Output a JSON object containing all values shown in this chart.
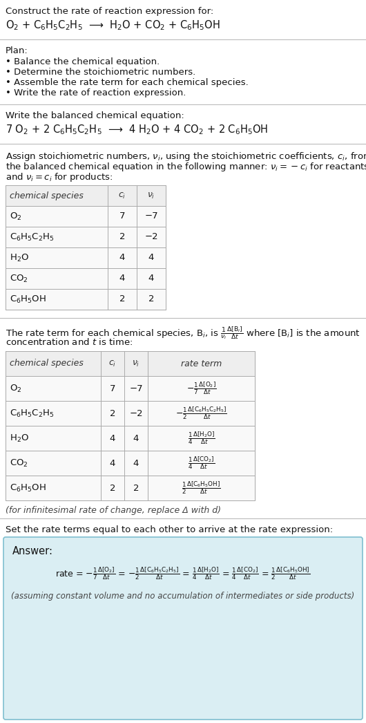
{
  "bg_color": "#ffffff",
  "text_color": "#111111",
  "title_line1": "Construct the rate of reaction expression for:",
  "reaction_unbalanced": "O$_2$ + C$_6$H$_5$C$_2$H$_5$  ⟶  H$_2$O + CO$_2$ + C$_6$H$_5$OH",
  "plan_header": "Plan:",
  "plan_items": [
    "• Balance the chemical equation.",
    "• Determine the stoichiometric numbers.",
    "• Assemble the rate term for each chemical species.",
    "• Write the rate of reaction expression."
  ],
  "balanced_header": "Write the balanced chemical equation:",
  "reaction_balanced": "7 O$_2$ + 2 C$_6$H$_5$C$_2$H$_5$  ⟶  4 H$_2$O + 4 CO$_2$ + 2 C$_6$H$_5$OH",
  "stoich_intro1": "Assign stoichiometric numbers, $\\nu_i$, using the stoichiometric coefficients, $c_i$, from",
  "stoich_intro2": "the balanced chemical equation in the following manner: $\\nu_i = -c_i$ for reactants",
  "stoich_intro3": "and $\\nu_i = c_i$ for products:",
  "table1_headers": [
    "chemical species",
    "$c_i$",
    "$\\nu_i$"
  ],
  "table1_rows": [
    [
      "O$_2$",
      "7",
      "−7"
    ],
    [
      "C$_6$H$_5$C$_2$H$_5$",
      "2",
      "−2"
    ],
    [
      "H$_2$O",
      "4",
      "4"
    ],
    [
      "CO$_2$",
      "4",
      "4"
    ],
    [
      "C$_6$H$_5$OH",
      "2",
      "2"
    ]
  ],
  "rate_intro1": "The rate term for each chemical species, B$_i$, is $\\frac{1}{\\nu_i}\\frac{\\Delta[\\mathrm{B}_i]}{\\Delta t}$ where [B$_i$] is the amount",
  "rate_intro2": "concentration and $t$ is time:",
  "table2_headers": [
    "chemical species",
    "$c_i$",
    "$\\nu_i$",
    "rate term"
  ],
  "table2_rows": [
    [
      "O$_2$",
      "7",
      "−7",
      "$-\\frac{1}{7}\\frac{\\Delta[\\mathrm{O}_2]}{\\Delta t}$"
    ],
    [
      "C$_6$H$_5$C$_2$H$_5$",
      "2",
      "−2",
      "$-\\frac{1}{2}\\frac{\\Delta[\\mathrm{C_6H_5C_2H_5}]}{\\Delta t}$"
    ],
    [
      "H$_2$O",
      "4",
      "4",
      "$\\frac{1}{4}\\frac{\\Delta[\\mathrm{H_2O}]}{\\Delta t}$"
    ],
    [
      "CO$_2$",
      "4",
      "4",
      "$\\frac{1}{4}\\frac{\\Delta[\\mathrm{CO_2}]}{\\Delta t}$"
    ],
    [
      "C$_6$H$_5$OH",
      "2",
      "2",
      "$\\frac{1}{2}\\frac{\\Delta[\\mathrm{C_6H_5OH}]}{\\Delta t}$"
    ]
  ],
  "infinitesimal_note": "(for infinitesimal rate of change, replace Δ with d)",
  "set_equal_text": "Set the rate terms equal to each other to arrive at the rate expression:",
  "answer_label": "Answer:",
  "answer_box_color": "#daeef3",
  "answer_box_border": "#7fbfcf",
  "answer_expr": "rate = $-\\frac{1}{7}\\frac{\\Delta[\\mathrm{O_2}]}{\\Delta t}$ = $-\\frac{1}{2}\\frac{\\Delta[\\mathrm{C_6H_5C_2H_5}]}{\\Delta t}$ = $\\frac{1}{4}\\frac{\\Delta[\\mathrm{H_2O}]}{\\Delta t}$ = $\\frac{1}{4}\\frac{\\Delta[\\mathrm{CO_2}]}{\\Delta t}$ = $\\frac{1}{2}\\frac{\\Delta[\\mathrm{C_6H_5OH}]}{\\Delta t}$",
  "answer_note": "(assuming constant volume and no accumulation of intermediates or side products)"
}
